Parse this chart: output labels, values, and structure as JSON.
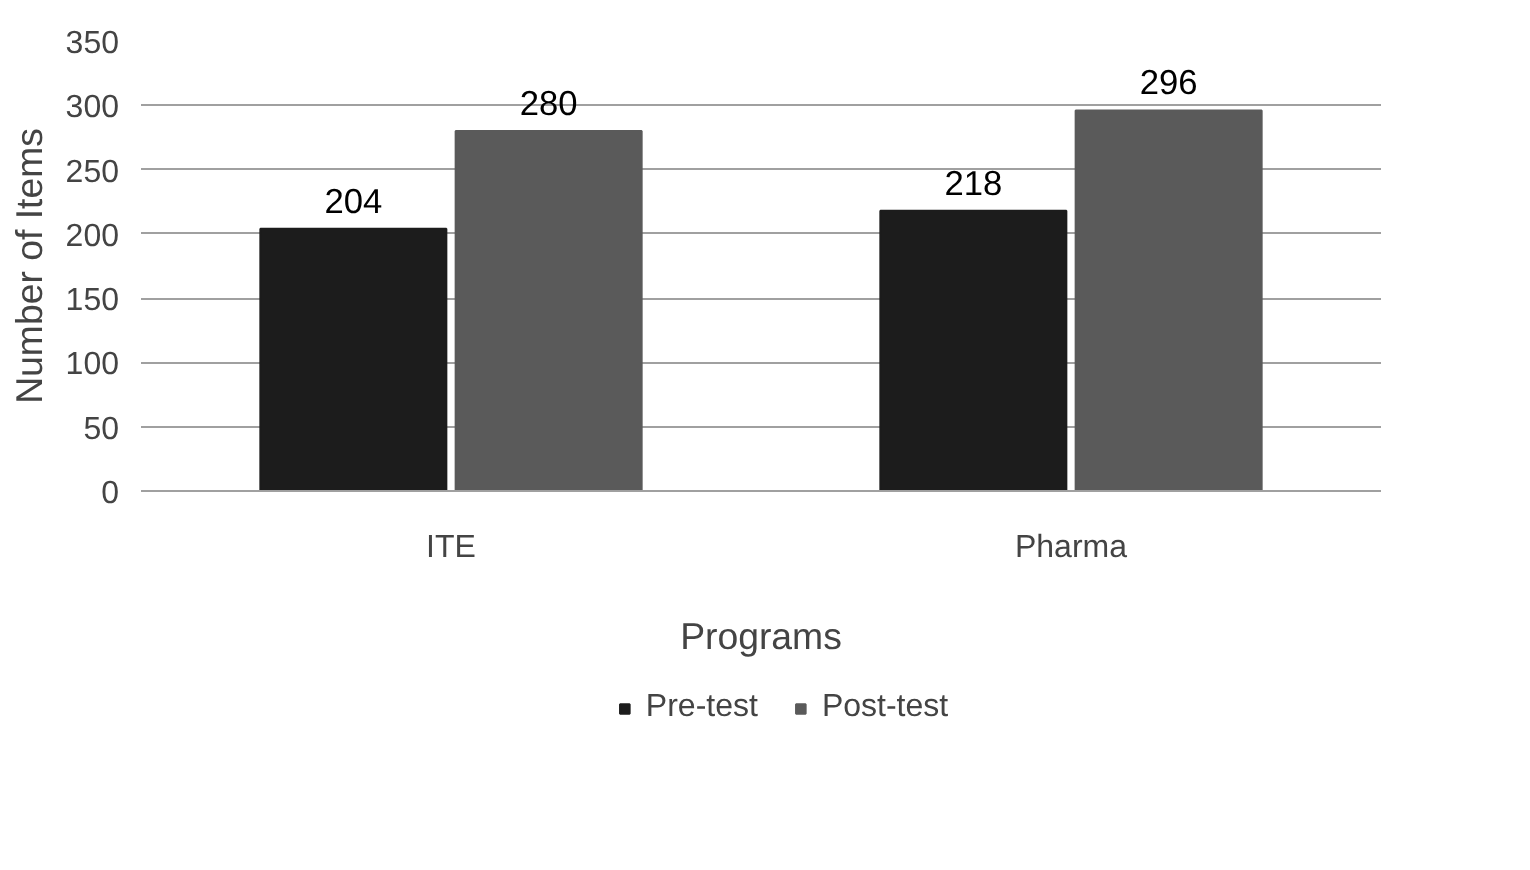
{
  "chart_data": {
    "type": "bar",
    "categories": [
      "ITE",
      "Pharma"
    ],
    "xlabel": "Programs",
    "ylabel": "Number of Items",
    "series": [
      {
        "name": "Pre-test",
        "color": "#1c1c1c",
        "values": [
          204,
          218
        ]
      },
      {
        "name": "Post-test",
        "color": "#5a5a5a",
        "values": [
          280,
          296
        ]
      }
    ],
    "ylim": [
      0,
      350
    ],
    "yticks": [
      0,
      50,
      100,
      150,
      200,
      250,
      300,
      350
    ],
    "grid": "y",
    "legend": "bottom",
    "data_labels": true
  }
}
